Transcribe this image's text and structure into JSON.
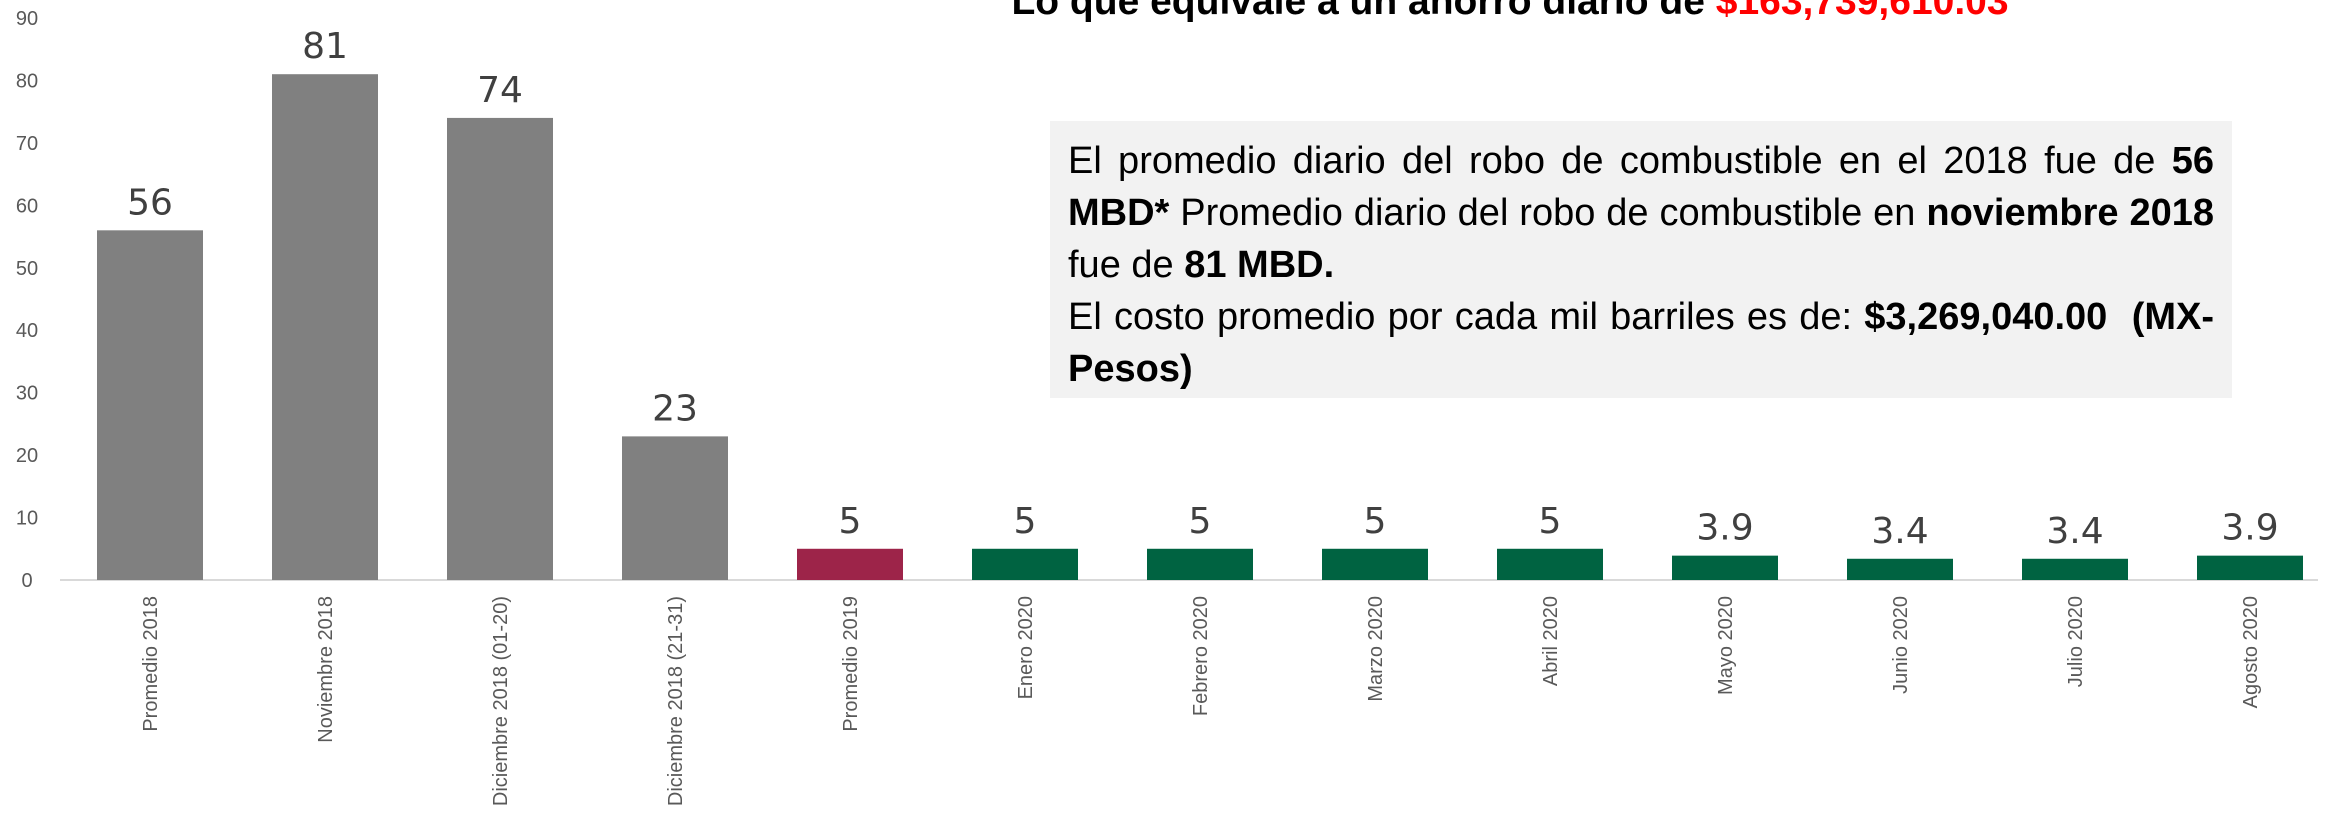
{
  "chart_data": {
    "type": "bar",
    "title": "Lo que equivale a un ahorro diario de",
    "title_value": "$163,739,610.03",
    "title_value_color": "#ff0000",
    "categories": [
      "Promedio 2018",
      "Noviembre 2018",
      "Diciembre 2018 (01-20)",
      "Diciembre 2018 (21-31)",
      "Promedio 2019",
      "Enero 2020",
      "Febrero 2020",
      "Marzo 2020",
      "Abril 2020",
      "Mayo 2020",
      "Junio 2020",
      "Julio 2020",
      "Agosto 2020"
    ],
    "values": [
      56,
      81,
      74,
      23,
      5,
      5,
      5,
      5,
      5,
      3.9,
      3.4,
      3.4,
      3.9
    ],
    "colors": [
      "#808080",
      "#808080",
      "#808080",
      "#808080",
      "#9d2449",
      "#006341",
      "#006341",
      "#006341",
      "#006341",
      "#006341",
      "#006341",
      "#006341",
      "#006341"
    ],
    "ylim": [
      0,
      90
    ],
    "yticks": [
      0,
      10,
      20,
      30,
      40,
      50,
      60,
      70,
      80,
      90
    ],
    "grid": false,
    "annotation": [
      [
        {
          "text": "El promedio diario del robo de combustible en el 2018 fue de ",
          "bold": false
        },
        {
          "text": "56 MBD*",
          "bold": true
        },
        {
          "text": " Promedio diario del robo de combustible en ",
          "bold": false
        },
        {
          "text": "noviembre 2018",
          "bold": true
        },
        {
          "text": " fue de ",
          "bold": false
        },
        {
          "text": "81 MBD.",
          "bold": true
        }
      ],
      [
        {
          "text": "El costo promedio por cada mil barriles es de: ",
          "bold": false
        },
        {
          "text": "$3,269,040.00  (MX-Pesos)",
          "bold": true
        }
      ]
    ]
  }
}
